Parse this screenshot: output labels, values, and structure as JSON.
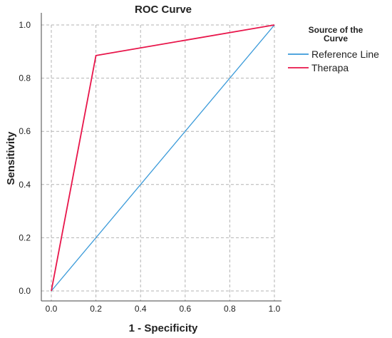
{
  "chart_data": {
    "type": "line",
    "title": "ROC Curve",
    "xlabel": "1 - Specificity",
    "ylabel": "Sensitivity",
    "xlim": [
      0,
      1
    ],
    "ylim": [
      0,
      1
    ],
    "x_ticks": [
      "0.0",
      "0.2",
      "0.4",
      "0.6",
      "0.8",
      "1.0"
    ],
    "y_ticks": [
      "0.0",
      "0.2",
      "0.4",
      "0.6",
      "0.8",
      "1.0"
    ],
    "grid": true,
    "legend": {
      "title_line1": "Source of the",
      "title_line2": "Curve",
      "placement": "right"
    },
    "series": [
      {
        "name": "Reference Line",
        "color": "#3a9ad9",
        "x": [
          0.0,
          1.0
        ],
        "y": [
          0.0,
          1.0
        ]
      },
      {
        "name": "Therapa",
        "color": "#e8154a",
        "x": [
          0.0,
          0.2,
          1.0
        ],
        "y": [
          0.0,
          0.885,
          1.0
        ]
      }
    ]
  }
}
